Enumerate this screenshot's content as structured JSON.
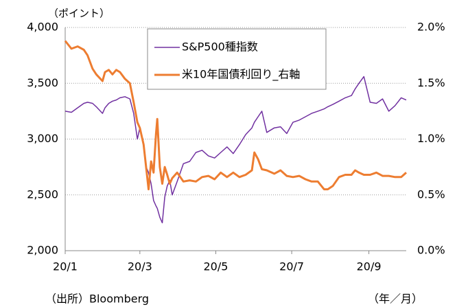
{
  "chart_data": {
    "type": "line",
    "y_label": "（ポイント）",
    "source": "（出所）Bloomberg",
    "x_label": "（年／月）",
    "x": [
      0,
      5,
      10,
      15,
      18,
      22,
      25,
      30,
      32,
      35,
      38,
      41,
      44,
      48,
      52,
      55,
      58,
      60,
      63,
      65,
      67,
      69,
      71,
      73,
      74,
      76,
      78,
      80,
      82,
      84,
      86,
      90,
      95,
      100,
      105,
      110,
      115,
      120,
      125,
      130,
      135,
      140,
      145,
      150,
      152,
      155,
      158,
      162,
      168,
      173,
      178,
      183,
      188,
      193,
      198,
      203,
      208,
      211,
      215,
      220,
      225,
      230,
      233,
      236,
      240,
      245,
      250,
      255,
      260,
      265,
      270,
      274
    ],
    "xlim": [
      0,
      274
    ],
    "xticks": [
      {
        "value": 0,
        "label": "20/1"
      },
      {
        "value": 60,
        "label": "20/3"
      },
      {
        "value": 121,
        "label": "20/5"
      },
      {
        "value": 182,
        "label": "20/7"
      },
      {
        "value": 244,
        "label": "20/9"
      }
    ],
    "ylim": [
      2000,
      4000
    ],
    "yticks": [
      {
        "value": 2000,
        "label": "2,000"
      },
      {
        "value": 2500,
        "label": "2,500"
      },
      {
        "value": 3000,
        "label": "3,000"
      },
      {
        "value": 3500,
        "label": "3,500"
      },
      {
        "value": 4000,
        "label": "4,000"
      }
    ],
    "y2lim": [
      0,
      2.0
    ],
    "y2ticks": [
      {
        "value": 0,
        "label": "0.0%"
      },
      {
        "value": 0.5,
        "label": "0.5%"
      },
      {
        "value": 1.0,
        "label": "1.0%"
      },
      {
        "value": 1.5,
        "label": "1.5%"
      },
      {
        "value": 2.0,
        "label": "2.0%"
      }
    ],
    "grid": true,
    "series": [
      {
        "name": "S&P500種指数",
        "color": "#7030a0",
        "values": [
          3250,
          3240,
          3280,
          3320,
          3330,
          3320,
          3290,
          3230,
          3280,
          3320,
          3340,
          3350,
          3370,
          3380,
          3360,
          3230,
          3000,
          3100,
          2950,
          2750,
          2700,
          2600,
          2450,
          2400,
          2380,
          2300,
          2250,
          2480,
          2580,
          2630,
          2500,
          2620,
          2780,
          2800,
          2880,
          2900,
          2850,
          2830,
          2880,
          2930,
          2870,
          2950,
          3040,
          3100,
          3150,
          3200,
          3250,
          3060,
          3100,
          3110,
          3050,
          3150,
          3170,
          3200,
          3230,
          3250,
          3270,
          3290,
          3310,
          3340,
          3370,
          3390,
          3450,
          3500,
          3560,
          3330,
          3320,
          3360,
          3250,
          3300,
          3370,
          3350
        ]
      },
      {
        "name": "米10年国債利回り_右軸",
        "color": "#ed7d31",
        "axis": "y2",
        "values": [
          1.88,
          1.81,
          1.83,
          1.8,
          1.75,
          1.63,
          1.58,
          1.52,
          1.6,
          1.62,
          1.58,
          1.62,
          1.6,
          1.54,
          1.5,
          1.33,
          1.15,
          1.1,
          0.95,
          0.75,
          0.55,
          0.8,
          0.7,
          1.05,
          1.18,
          0.75,
          0.6,
          0.75,
          0.68,
          0.6,
          0.65,
          0.7,
          0.62,
          0.63,
          0.62,
          0.66,
          0.67,
          0.64,
          0.7,
          0.66,
          0.7,
          0.66,
          0.68,
          0.72,
          0.88,
          0.82,
          0.73,
          0.72,
          0.69,
          0.72,
          0.67,
          0.66,
          0.67,
          0.64,
          0.62,
          0.62,
          0.55,
          0.55,
          0.58,
          0.66,
          0.68,
          0.68,
          0.72,
          0.7,
          0.68,
          0.68,
          0.7,
          0.67,
          0.67,
          0.66,
          0.66,
          0.7
        ]
      }
    ]
  }
}
